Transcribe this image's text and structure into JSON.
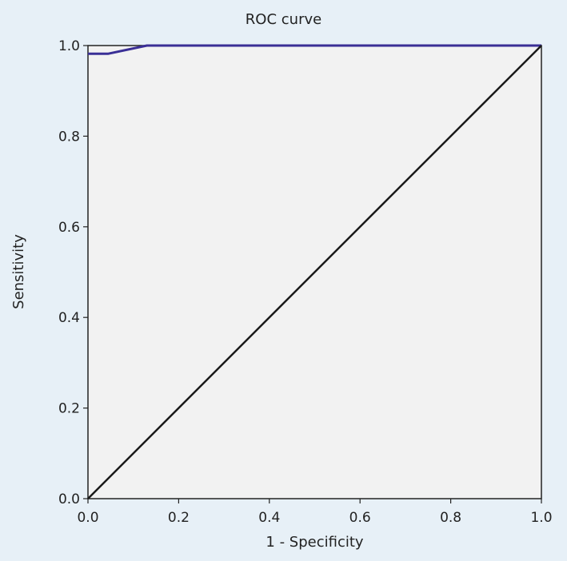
{
  "chart_data": {
    "type": "line",
    "title": "ROC curve",
    "xlabel": "1 - Specificity",
    "ylabel": "Sensitivity",
    "xlim": [
      0,
      1
    ],
    "ylim": [
      0,
      1
    ],
    "x_ticks": [
      "0.0",
      "0.2",
      "0.4",
      "0.6",
      "0.8",
      "1.0"
    ],
    "y_ticks": [
      "0.0",
      "0.2",
      "0.4",
      "0.6",
      "0.8",
      "1.0"
    ],
    "grid": false,
    "legend": "none",
    "series": [
      {
        "color": "#3a2f96",
        "x": [
          0.0,
          0.045,
          0.13,
          1.0
        ],
        "y": [
          0.982,
          0.982,
          1.0,
          1.0
        ]
      },
      {
        "color": "#1a1a1a",
        "x": [
          0.0,
          1.0
        ],
        "y": [
          0.0,
          1.0
        ]
      }
    ]
  },
  "colors": {
    "background": "#e7f0f7",
    "plot_area": "#f2f2f2",
    "axis": "#222222"
  }
}
